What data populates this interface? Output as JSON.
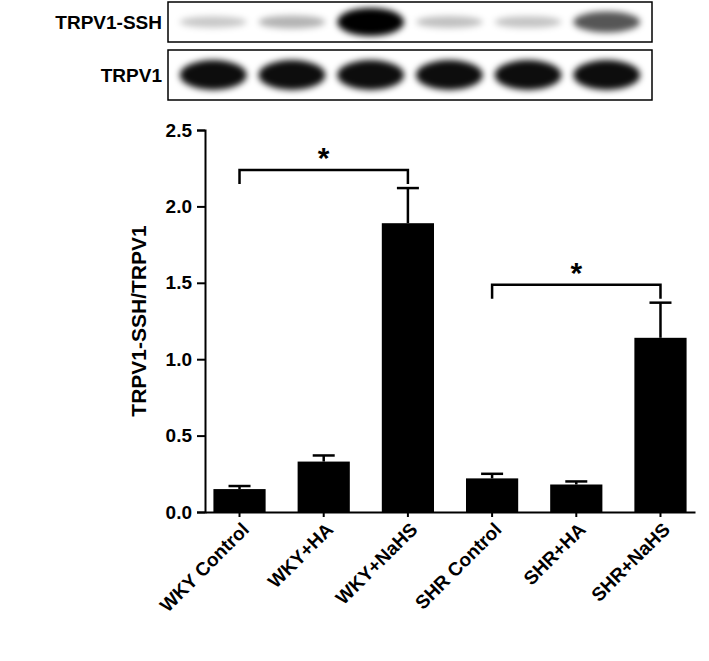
{
  "chart_data": {
    "type": "bar",
    "blot_labels": [
      "TRPV1-SSH",
      "TRPV1"
    ],
    "y_label": "TRPV1-SSH/TRPV1",
    "categories": [
      "WKY Control",
      "WKY+HA",
      "WKY+NaHS",
      "SHR Control",
      "SHR+HA",
      "SHR+NaHS"
    ],
    "values": [
      0.15,
      0.33,
      1.89,
      0.22,
      0.18,
      1.14
    ],
    "errors": [
      0.02,
      0.04,
      0.23,
      0.03,
      0.02,
      0.23
    ],
    "color": "#000000",
    "ylim": [
      0,
      2.5
    ],
    "yticks": [
      {
        "value": 0,
        "label": "0.0"
      },
      0.5,
      {
        "value": 1,
        "label": "1.0"
      },
      1.5,
      {
        "value": 2,
        "label": "2.0"
      },
      2.5
    ],
    "annotations": [
      {
        "text": "*",
        "from": 0,
        "to": 2
      },
      {
        "text": "*",
        "from": 3,
        "to": 5
      }
    ]
  }
}
